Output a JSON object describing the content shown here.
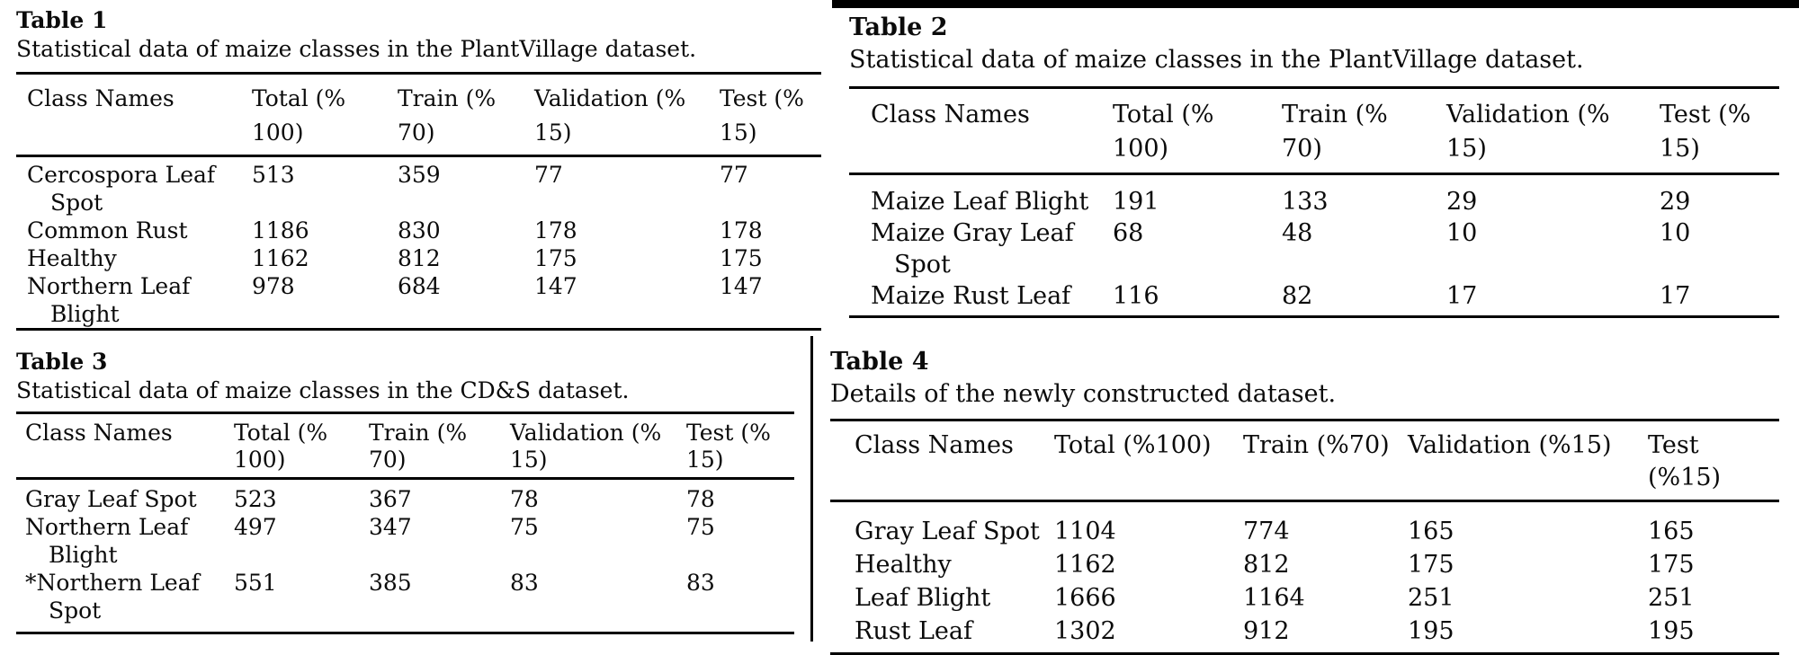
{
  "page": {
    "background_color": "#ffffff",
    "text_color": "#0b0b0b",
    "rule_color": "#000000"
  },
  "decorations": {
    "top_right_bar_color": "#000000",
    "column_divider_color": "#000000"
  },
  "tables": [
    {
      "title": "Table 1",
      "caption": "Statistical data of maize classes in the PlantVillage dataset.",
      "headers": [
        "Class Names",
        "Total (%\n100)",
        "Train (%\n70)",
        "Validation (%\n15)",
        "Test (%\n15)"
      ],
      "rows": [
        [
          "Cercospora Leaf\nSpot",
          "513",
          "359",
          "77",
          "77"
        ],
        [
          "Common Rust",
          "1186",
          "830",
          "178",
          "178"
        ],
        [
          "Healthy",
          "1162",
          "812",
          "175",
          "175"
        ],
        [
          "Northern Leaf\nBlight",
          "978",
          "684",
          "147",
          "147"
        ]
      ]
    },
    {
      "title": "Table 2",
      "caption": "Statistical data of maize classes in the PlantVillage dataset.",
      "headers": [
        "Class Names",
        "Total (%\n100)",
        "Train (%\n70)",
        "Validation (%\n15)",
        "Test (%\n15)"
      ],
      "rows": [
        [
          "Maize Leaf Blight",
          "191",
          "133",
          "29",
          "29"
        ],
        [
          "Maize Gray Leaf\nSpot",
          "68",
          "48",
          "10",
          "10"
        ],
        [
          "Maize Rust Leaf",
          "116",
          "82",
          "17",
          "17"
        ]
      ]
    },
    {
      "title": "Table 3",
      "caption": "Statistical data of maize classes in the CD&S dataset.",
      "headers": [
        "Class Names",
        "Total (%\n100)",
        "Train (%\n70)",
        "Validation (%\n15)",
        "Test (%\n15)"
      ],
      "rows": [
        [
          "Gray Leaf Spot",
          "523",
          "367",
          "78",
          "78"
        ],
        [
          "Northern Leaf\nBlight",
          "497",
          "347",
          "75",
          "75"
        ],
        [
          "*Northern Leaf\nSpot",
          "551",
          "385",
          "83",
          "83"
        ]
      ]
    },
    {
      "title": "Table 4",
      "caption": "Details of the newly constructed dataset.",
      "headers": [
        "Class Names",
        "Total (%100)",
        "Train (%70)",
        "Validation (%15)",
        "Test (%15)"
      ],
      "rows": [
        [
          "Gray Leaf Spot",
          "1104",
          "774",
          "165",
          "165"
        ],
        [
          "Healthy",
          "1162",
          "812",
          "175",
          "175"
        ],
        [
          "Leaf Blight",
          "1666",
          "1164",
          "251",
          "251"
        ],
        [
          "Rust Leaf",
          "1302",
          "912",
          "195",
          "195"
        ]
      ]
    }
  ]
}
